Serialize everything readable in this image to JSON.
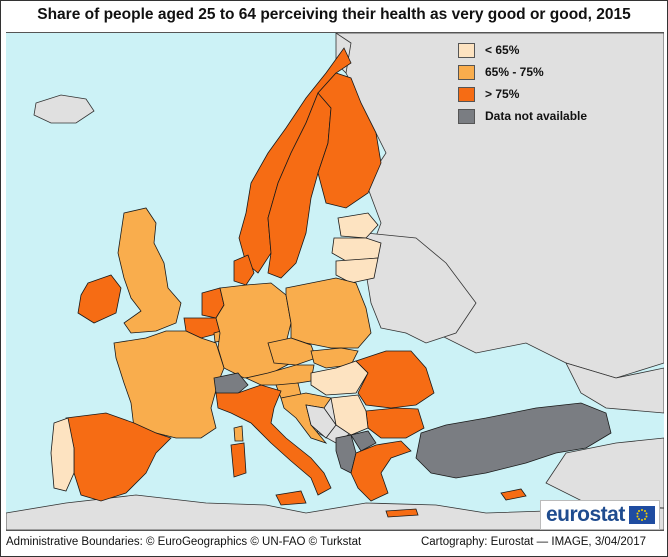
{
  "title": "Share of people aged 25 to 64 perceiving their health as very good or good, 2015",
  "colors": {
    "sea": "#ccf2f6",
    "land_outside": "#e0e0e0",
    "low": "#fde3c1",
    "mid": "#f9ad4d",
    "high": "#f66c14",
    "na": "#7a7d82",
    "border": "#1a1a1a"
  },
  "legend": [
    {
      "label": "< 65%",
      "color": "#fde3c1"
    },
    {
      "label": "65% - 75%",
      "color": "#f9ad4d"
    },
    {
      "label": "> 75%",
      "color": "#f66c14"
    },
    {
      "label": "Data not available",
      "color": "#7a7d82"
    }
  ],
  "footer": {
    "left": "Administrative Boundaries: © EuroGeographics © UN-FAO © Turkstat",
    "right": "Cartography: Eurostat — IMAGE, 3/04/2017"
  },
  "logo": {
    "text": "eurostat"
  }
}
